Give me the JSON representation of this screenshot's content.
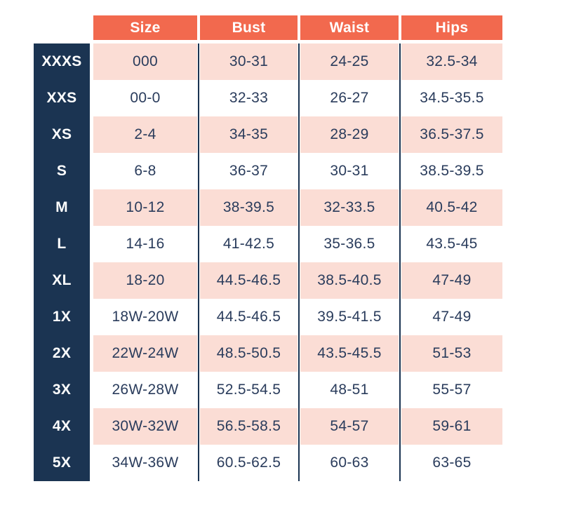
{
  "colors": {
    "page_bg": "#FFFFFF",
    "header_bg": "#F2694E",
    "header_text": "#FFFFFF",
    "label_bg": "#1B3452",
    "label_text": "#FFFFFF",
    "row_pink": "#FBDDD5",
    "row_white": "#FFFFFF",
    "cell_text": "#2A3C5C",
    "divider": "#1B3452"
  },
  "chart_data": {
    "type": "table",
    "title": "",
    "columns": [
      "Size",
      "Bust",
      "Waist",
      "Hips"
    ],
    "row_labels": [
      "XXXS",
      "XXS",
      "XS",
      "S",
      "M",
      "L",
      "XL",
      "1X",
      "2X",
      "3X",
      "4X",
      "5X"
    ],
    "rows": [
      [
        "000",
        "30-31",
        "24-25",
        "32.5-34"
      ],
      [
        "00-0",
        "32-33",
        "26-27",
        "34.5-35.5"
      ],
      [
        "2-4",
        "34-35",
        "28-29",
        "36.5-37.5"
      ],
      [
        "6-8",
        "36-37",
        "30-31",
        "38.5-39.5"
      ],
      [
        "10-12",
        "38-39.5",
        "32-33.5",
        "40.5-42"
      ],
      [
        "14-16",
        "41-42.5",
        "35-36.5",
        "43.5-45"
      ],
      [
        "18-20",
        "44.5-46.5",
        "38.5-40.5",
        "47-49"
      ],
      [
        "18W-20W",
        "44.5-46.5",
        "39.5-41.5",
        "47-49"
      ],
      [
        "22W-24W",
        "48.5-50.5",
        "43.5-45.5",
        "51-53"
      ],
      [
        "26W-28W",
        "52.5-54.5",
        "48-51",
        "55-57"
      ],
      [
        "30W-32W",
        "56.5-58.5",
        "54-57",
        "59-61"
      ],
      [
        "34W-36W",
        "60.5-62.5",
        "60-63",
        "63-65"
      ]
    ],
    "layout": {
      "grid": "off",
      "stripe_colors": [
        "pink",
        "white"
      ],
      "header_position": "top",
      "row_label_position": "left"
    }
  }
}
